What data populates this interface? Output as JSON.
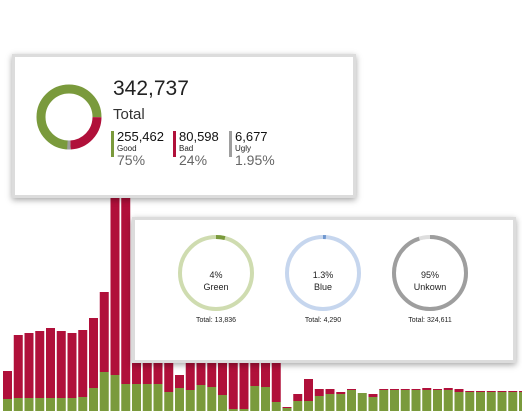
{
  "chart_data": {
    "type": "bar",
    "stacked": true,
    "series": [
      {
        "color": "#7a9a3c",
        "values": [
          12,
          13,
          13,
          13,
          13,
          13,
          13,
          14,
          23,
          39,
          36,
          27,
          27,
          27,
          27,
          19,
          23,
          21,
          26,
          24,
          16,
          2,
          2,
          25,
          24,
          9,
          3,
          10,
          10,
          15,
          17,
          17,
          21,
          18,
          14,
          21,
          21,
          21,
          21,
          21,
          21,
          21,
          19,
          19,
          19,
          19,
          19,
          19,
          19
        ]
      },
      {
        "color": "#b0103a",
        "values": [
          28,
          63,
          65,
          67,
          70,
          67,
          65,
          67,
          70,
          80,
          200,
          210,
          160,
          160,
          160,
          50,
          13,
          50,
          50,
          60,
          50,
          51,
          53,
          40,
          40,
          53,
          1,
          7,
          22,
          7,
          5,
          2,
          1,
          0,
          3,
          1,
          1,
          1,
          1,
          2,
          1,
          2,
          3,
          1,
          1,
          1,
          1,
          1,
          1
        ]
      }
    ]
  },
  "summary": {
    "total_value": "342,737",
    "total_label": "Total",
    "stats": [
      {
        "value": "255,462",
        "label": "Good",
        "percent": "75%",
        "color": "#7a9a3c",
        "share": 0.75
      },
      {
        "value": "80,598",
        "label": "Bad",
        "percent": "24%",
        "color": "#b0103a",
        "share": 0.24
      },
      {
        "value": "6,677",
        "label": "Ugly",
        "percent": "1.95%",
        "color": "#9e9e9e",
        "share": 0.0195
      }
    ]
  },
  "colors": [
    {
      "percent": "4%",
      "name": "Green",
      "total": "Total: 13,836",
      "share": 0.04,
      "color": "#7a9a3c",
      "track": "#cfdcb0"
    },
    {
      "percent": "1.3%",
      "name": "Blue",
      "total": "Total: 4,290",
      "share": 0.013,
      "color": "#6f97cf",
      "track": "#c6d6ee"
    },
    {
      "percent": "95%",
      "name": "Unkown",
      "total": "Total: 324,611",
      "share": 0.95,
      "color": "#9e9e9e",
      "track": "#dedede"
    }
  ]
}
